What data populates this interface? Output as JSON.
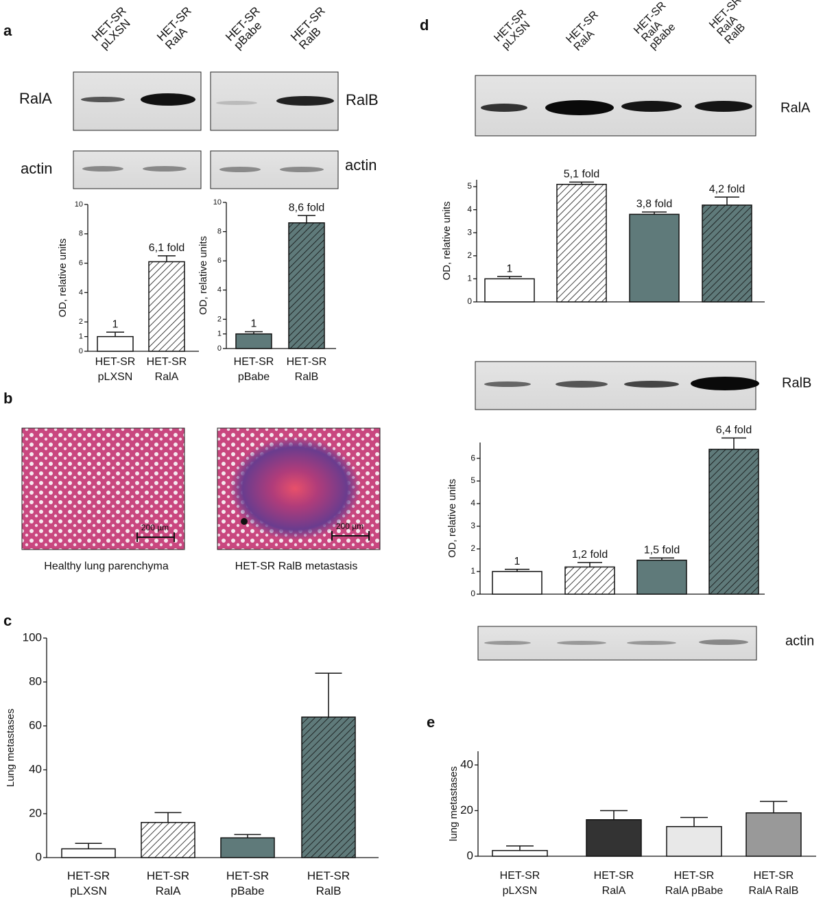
{
  "panel_letters": [
    "a",
    "b",
    "c",
    "d",
    "e"
  ],
  "blots": {
    "a_lanes": [
      "HET-SR\npLXSN",
      "HET-SR\nRalA",
      "HET-SR\npBabe",
      "HET-SR\nRalB"
    ],
    "a_labels": [
      "RalA",
      "RalB",
      "actin",
      "actin"
    ],
    "d_lanes": [
      "HET-SR\npLXSN",
      "HET-SR\nRalA",
      "HET-SR\nRalA\npBabe",
      "HET-SR\nRalA\nRalB"
    ],
    "d_labels": [
      "RalA",
      "RalB",
      "actin"
    ]
  },
  "histology": {
    "scale_labels": [
      "200 µm",
      "200 µm"
    ],
    "captions": [
      "Healthy lung parenchyma",
      "HET-SR RalB metastasis"
    ]
  },
  "chart_data": [
    {
      "type": "bar",
      "ylabel": "OD, relative units",
      "categories": [
        "HET-SR\npLXSN",
        "HET-SR\nRalA"
      ],
      "values": [
        1,
        6.1
      ],
      "errors": [
        0.3,
        0.4
      ],
      "value_labels": [
        "1",
        "6,1 fold"
      ],
      "colors": [
        "#ffffff",
        "#ffffff"
      ],
      "hatch": [
        false,
        true
      ],
      "ylim": [
        0,
        10
      ],
      "yticks": [
        0,
        1,
        2,
        4,
        6,
        8,
        10
      ]
    },
    {
      "type": "bar",
      "ylabel": "OD, relative units",
      "categories": [
        "HET-SR\npBabe",
        "HET-SR\nRalB"
      ],
      "values": [
        1,
        8.6
      ],
      "errors": [
        0.15,
        0.5
      ],
      "value_labels": [
        "1",
        "8,6 fold"
      ],
      "colors": [
        "#5f7a7a",
        "#5f7a7a"
      ],
      "hatch": [
        false,
        true
      ],
      "ylim": [
        0,
        10
      ],
      "yticks": [
        0,
        1,
        2,
        4,
        6,
        8,
        10
      ]
    },
    {
      "type": "bar",
      "ylabel": "Lung metastases",
      "categories": [
        "HET-SR\npLXSN",
        "HET-SR\nRalA",
        "HET-SR\npBabe",
        "HET-SR\nRalB"
      ],
      "values": [
        4,
        16,
        9,
        64
      ],
      "errors": [
        2.5,
        4.5,
        1.5,
        20
      ],
      "colors": [
        "#ffffff",
        "#ffffff",
        "#5f7a7a",
        "#5f7a7a"
      ],
      "hatch": [
        false,
        true,
        false,
        true
      ],
      "ylim": [
        0,
        100
      ],
      "yticks": [
        0,
        20,
        40,
        60,
        80,
        100
      ]
    },
    {
      "type": "bar",
      "ylabel": "OD, relative units",
      "categories": [
        null,
        null,
        null,
        null
      ],
      "values": [
        1,
        5.1,
        3.8,
        4.2
      ],
      "errors": [
        0.1,
        0.1,
        0.1,
        0.35
      ],
      "value_labels": [
        "1",
        "5,1 fold",
        "3,8 fold",
        "4,2 fold"
      ],
      "colors": [
        "#ffffff",
        "#ffffff",
        "#5f7a7a",
        "#5f7a7a"
      ],
      "hatch": [
        false,
        true,
        false,
        true
      ],
      "ylim": [
        0,
        5.3
      ],
      "yticks": [
        0,
        1,
        2,
        3,
        4,
        5
      ]
    },
    {
      "type": "bar",
      "ylabel": "OD, relative units",
      "categories": [
        null,
        null,
        null,
        null
      ],
      "values": [
        1,
        1.2,
        1.5,
        6.4
      ],
      "errors": [
        0.1,
        0.2,
        0.1,
        0.5
      ],
      "value_labels": [
        "1",
        "1,2 fold",
        "1,5 fold",
        "6,4 fold"
      ],
      "colors": [
        "#ffffff",
        "#ffffff",
        "#5f7a7a",
        "#5f7a7a"
      ],
      "hatch": [
        false,
        true,
        false,
        true
      ],
      "ylim": [
        0,
        6.7
      ],
      "yticks": [
        0,
        1,
        2,
        3,
        4,
        5,
        6
      ]
    },
    {
      "type": "bar",
      "ylabel": "lung metastases",
      "categories": [
        "HET-SR\npLXSN",
        "HET-SR\nRalA",
        "HET-SR\nRalA pBabe",
        "HET-SR\nRalA RalB"
      ],
      "values": [
        2.5,
        16,
        13,
        19
      ],
      "errors": [
        2,
        4,
        4,
        5
      ],
      "colors": [
        "#ffffff",
        "#333333",
        "#e8e8e8",
        "#999999"
      ],
      "hatch": [
        false,
        false,
        false,
        false
      ],
      "ylim": [
        0,
        46
      ],
      "yticks": [
        0,
        20,
        40
      ]
    }
  ]
}
